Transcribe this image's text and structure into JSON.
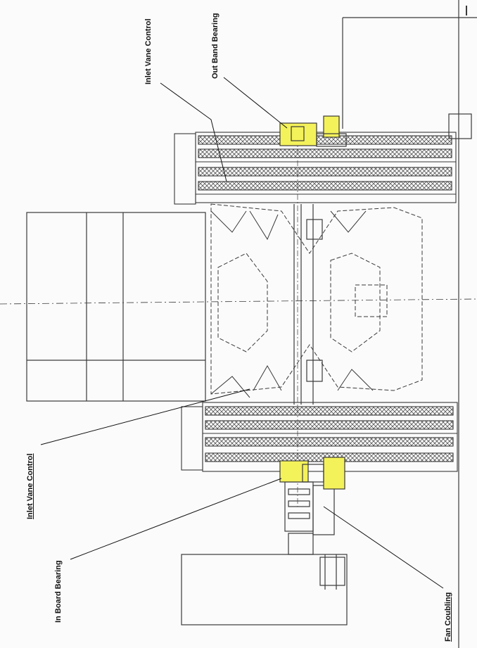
{
  "diagram": {
    "labels": {
      "inlet_vane_control_top": "Inlet Vane Control",
      "out_band_bearing": "Out Band Bearing",
      "inlet_vane_control_left": "Inlet Vane Control",
      "in_board_bearing": "In Board Bearing",
      "fan_coubling": "Fan Coubling"
    },
    "colors": {
      "highlight": "#f4f25a",
      "line": "#3a3a3a",
      "hatch": "#555555",
      "paper": "#fbfbfb"
    }
  }
}
